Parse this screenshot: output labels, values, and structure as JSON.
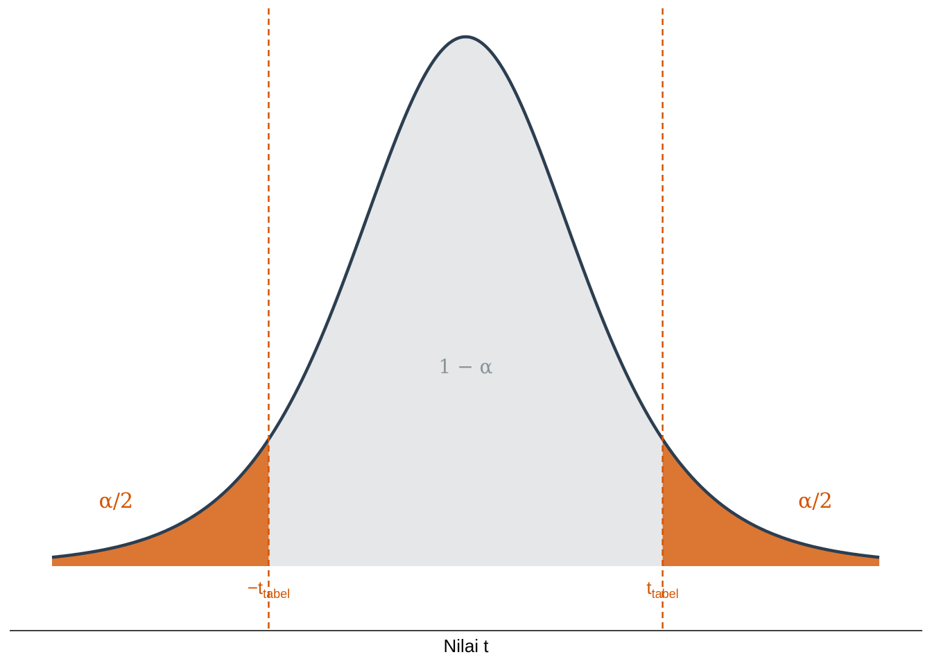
{
  "chart_data": {
    "type": "area",
    "distribution": "t",
    "x_range": [
      -4.2,
      4.2
    ],
    "critical_value": 2.0,
    "xlabel": "Nilai t",
    "regions": [
      {
        "name": "left-tail",
        "label": "α/2",
        "from": -4.2,
        "to": -2.0
      },
      {
        "name": "acceptance",
        "label": "1 − α",
        "from": -2.0,
        "to": 2.0
      },
      {
        "name": "right-tail",
        "label": "α/2",
        "from": 2.0,
        "to": 4.2
      }
    ],
    "critical_labels": {
      "left": {
        "main": "−t",
        "sub": "tabel"
      },
      "right": {
        "main": "t",
        "sub": "tabel"
      }
    },
    "grid": false,
    "legend": "none",
    "colors": {
      "curve": "#2C3E50",
      "acceptance_fill": "#E5E7E9",
      "tail_fill": "#DC7633",
      "critical_line": "#D35400",
      "center_label": "#8a9499",
      "axis": "#000000"
    }
  }
}
